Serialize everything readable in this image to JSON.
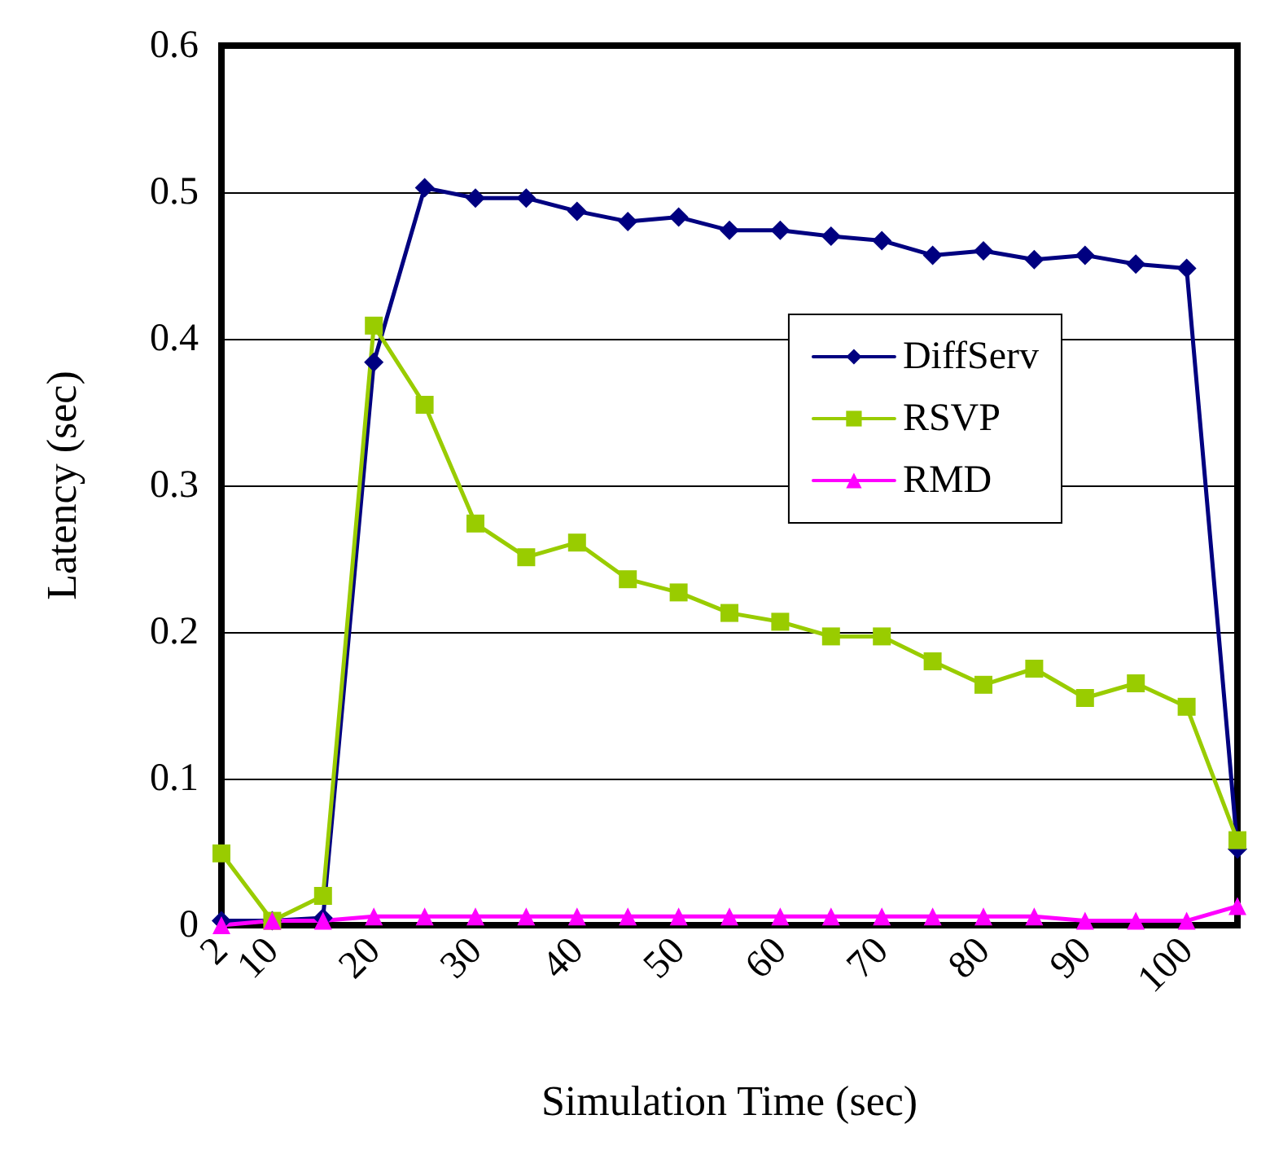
{
  "chart_data": {
    "type": "line",
    "xlabel": "Simulation Time (sec)",
    "ylabel": "Latency (sec)",
    "categories": [
      "2",
      "10",
      null,
      "20",
      null,
      "30",
      null,
      "40",
      null,
      "50",
      null,
      "60",
      null,
      "70",
      null,
      "80",
      null,
      "90",
      null,
      "100",
      null
    ],
    "series": [
      {
        "name": "DiffServ",
        "color": "#000080",
        "marker": "diamond",
        "values": [
          0.003,
          0.003,
          0.005,
          0.384,
          0.503,
          0.496,
          0.496,
          0.487,
          0.48,
          0.483,
          0.474,
          0.474,
          0.47,
          0.467,
          0.457,
          0.46,
          0.454,
          0.457,
          0.451,
          0.448,
          0.052
        ]
      },
      {
        "name": "RSVP",
        "color": "#99cc00",
        "marker": "square",
        "values": [
          0.049,
          0.003,
          0.02,
          0.409,
          0.355,
          0.274,
          0.251,
          0.261,
          0.236,
          0.227,
          0.213,
          0.207,
          0.197,
          0.197,
          0.18,
          0.164,
          0.175,
          0.155,
          0.165,
          0.149,
          0.058
        ]
      },
      {
        "name": "RMD",
        "color": "#ff00ff",
        "marker": "triangle",
        "values": [
          0,
          0.003,
          0.003,
          0.006,
          0.006,
          0.006,
          0.006,
          0.006,
          0.006,
          0.006,
          0.006,
          0.006,
          0.006,
          0.006,
          0.006,
          0.006,
          0.006,
          0.003,
          0.003,
          0.003,
          0.013
        ]
      }
    ],
    "ylim": [
      0,
      0.6
    ],
    "yticks": [
      0,
      0.1,
      0.2,
      0.3,
      0.4,
      0.5,
      0.6
    ],
    "grid": "y",
    "legend": "right",
    "line_style": "solid"
  }
}
